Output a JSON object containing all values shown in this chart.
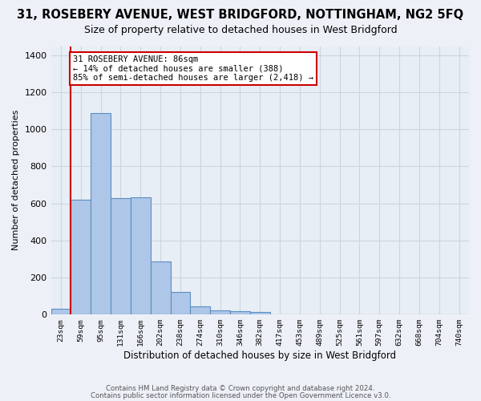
{
  "title": "31, ROSEBERY AVENUE, WEST BRIDGFORD, NOTTINGHAM, NG2 5FQ",
  "subtitle": "Size of property relative to detached houses in West Bridgford",
  "xlabel": "Distribution of detached houses by size in West Bridgford",
  "ylabel": "Number of detached properties",
  "footer1": "Contains HM Land Registry data © Crown copyright and database right 2024.",
  "footer2": "Contains public sector information licensed under the Open Government Licence v3.0.",
  "x_labels": [
    "23sqm",
    "59sqm",
    "95sqm",
    "131sqm",
    "166sqm",
    "202sqm",
    "238sqm",
    "274sqm",
    "310sqm",
    "346sqm",
    "382sqm",
    "417sqm",
    "453sqm",
    "489sqm",
    "525sqm",
    "561sqm",
    "597sqm",
    "632sqm",
    "668sqm",
    "704sqm",
    "740sqm"
  ],
  "bar_heights": [
    30,
    620,
    1090,
    630,
    635,
    285,
    120,
    42,
    22,
    18,
    12,
    0,
    0,
    0,
    0,
    0,
    0,
    0,
    0,
    0,
    0
  ],
  "bar_color": "#aec6e8",
  "bar_edge_color": "#5a8fc2",
  "bar_edge_width": 0.8,
  "annotation_line1": "31 ROSEBERY AVENUE: 86sqm",
  "annotation_line2": "← 14% of detached houses are smaller (388)",
  "annotation_line3": "85% of semi-detached houses are larger (2,418) →",
  "annotation_box_bg": "#ffffff",
  "annotation_box_edge": "#cc0000",
  "vline_color": "#cc0000",
  "vline_x": 0.5,
  "ylim": [
    0,
    1450
  ],
  "yticks": [
    0,
    200,
    400,
    600,
    800,
    1000,
    1200,
    1400
  ],
  "grid_color": "#cdd5e0",
  "plot_bg": "#e8eef5",
  "fig_bg": "#edf1f7"
}
